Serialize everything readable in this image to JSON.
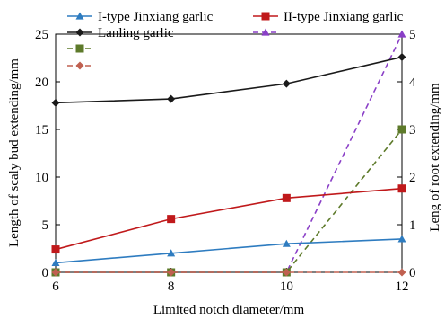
{
  "chart_data": {
    "type": "line",
    "x": [
      6,
      8,
      10,
      12
    ],
    "xlabel": "Limited notch diameter/mm",
    "ylabel_left": "Length of scaly bud extending/mm",
    "ylabel_right": "Leng of root extending/mm",
    "xlim": [
      6,
      12
    ],
    "ylim_left": [
      0,
      25
    ],
    "ylim_right": [
      0,
      5
    ],
    "x_ticks": [
      "6",
      "8",
      "10",
      "12"
    ],
    "y_left_ticks": [
      "0",
      "5",
      "10",
      "15",
      "20",
      "25"
    ],
    "y_right_ticks": [
      "0",
      "1",
      "2",
      "3",
      "4",
      "5"
    ],
    "grid": false,
    "legend_placement": "top",
    "series": [
      {
        "name": "I-type Jinxiang garlic",
        "axis": "left",
        "style": "solid",
        "marker": "triangle",
        "color": "#2e7cc0",
        "values": [
          1.0,
          2.0,
          3.0,
          3.5
        ]
      },
      {
        "name": "II-type Jinxiang garlic",
        "axis": "left",
        "style": "solid",
        "marker": "square",
        "color": "#c0191b",
        "values": [
          2.4,
          5.6,
          7.8,
          8.8
        ]
      },
      {
        "name": "Lanling garlic",
        "axis": "left",
        "style": "solid",
        "marker": "diamond",
        "color": "#1a1a1a",
        "values": [
          17.8,
          18.2,
          19.8,
          22.6
        ]
      },
      {
        "axis": "right",
        "style": "dashed",
        "marker": "triangle",
        "color": "#8a3fc7",
        "values": [
          0,
          0,
          0,
          5.0
        ]
      },
      {
        "axis": "right",
        "style": "dashed",
        "marker": "square",
        "color": "#5d7a2a",
        "values": [
          0,
          0,
          0,
          3.0
        ]
      },
      {
        "axis": "right",
        "style": "dashed",
        "marker": "diamond",
        "color": "#c06050",
        "values": [
          0,
          0,
          0,
          0
        ]
      }
    ]
  }
}
